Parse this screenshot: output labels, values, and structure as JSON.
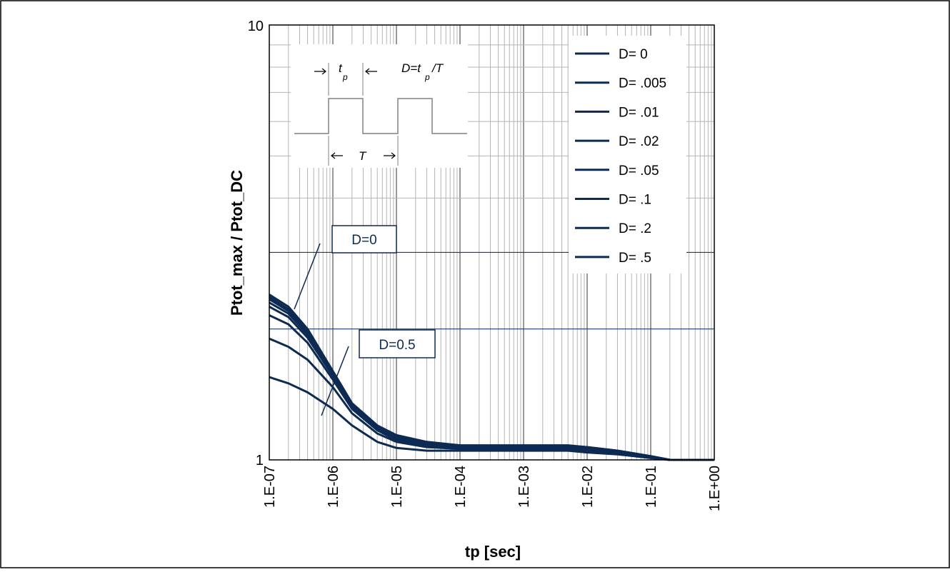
{
  "chart_data": {
    "type": "line",
    "xscale": "log",
    "yscale": "log",
    "xlim": [
      1e-07,
      1
    ],
    "ylim": [
      1,
      10
    ],
    "grid": true,
    "xlabel": "tp [sec]",
    "ylabel": "Ptot_max / Ptot_DC",
    "x_ticks": [
      "1.E-07",
      "1.E-06",
      "1.E-05",
      "1.E-04",
      "1.E-03",
      "1.E-02",
      "1.E-01",
      "1.E+00"
    ],
    "y_ticks": [
      "1",
      "10"
    ],
    "legend_position": "top-right",
    "colors": {
      "series": "#0d2a52",
      "grid_minor": "#b4b4b4",
      "grid_major": "#1b3a66"
    },
    "inset": {
      "tp_label": "t",
      "tp_sub": "p",
      "formula_prefix": "D=t",
      "formula_sub": "p",
      "formula_suffix": "/T",
      "period_label": "T"
    },
    "annotations": [
      {
        "label": "D=0"
      },
      {
        "label": "D=0.5"
      }
    ],
    "series": [
      {
        "name": "D= 0",
        "x": [
          1e-07,
          2e-07,
          4e-07,
          1e-06,
          2e-06,
          5e-06,
          1e-05,
          3e-05,
          0.0001,
          0.001,
          0.005,
          0.01,
          0.03,
          0.1,
          0.2,
          1
        ],
        "y": [
          2.4,
          2.25,
          2.0,
          1.6,
          1.35,
          1.2,
          1.14,
          1.1,
          1.08,
          1.08,
          1.08,
          1.07,
          1.05,
          1.02,
          1.0,
          1.0
        ]
      },
      {
        "name": "D= .005",
        "x": [
          1e-07,
          2e-07,
          4e-07,
          1e-06,
          2e-06,
          5e-06,
          1e-05,
          3e-05,
          0.0001,
          0.001,
          0.005,
          0.01,
          0.03,
          0.1,
          0.2,
          1
        ],
        "y": [
          2.37,
          2.22,
          1.98,
          1.59,
          1.34,
          1.19,
          1.135,
          1.095,
          1.075,
          1.075,
          1.075,
          1.07,
          1.05,
          1.02,
          1.0,
          1.0
        ]
      },
      {
        "name": "D= .01",
        "x": [
          1e-07,
          2e-07,
          4e-07,
          1e-06,
          2e-06,
          5e-06,
          1e-05,
          3e-05,
          0.0001,
          0.001,
          0.005,
          0.01,
          0.03,
          0.1,
          0.2,
          1
        ],
        "y": [
          2.34,
          2.2,
          1.96,
          1.58,
          1.33,
          1.19,
          1.13,
          1.09,
          1.07,
          1.07,
          1.07,
          1.065,
          1.045,
          1.02,
          1.0,
          1.0
        ]
      },
      {
        "name": "D= .02",
        "x": [
          1e-07,
          2e-07,
          4e-07,
          1e-06,
          2e-06,
          5e-06,
          1e-05,
          3e-05,
          0.0001,
          0.001,
          0.005,
          0.01,
          0.03,
          0.1,
          0.2,
          1
        ],
        "y": [
          2.3,
          2.17,
          1.94,
          1.57,
          1.33,
          1.18,
          1.13,
          1.09,
          1.07,
          1.07,
          1.07,
          1.06,
          1.04,
          1.02,
          1.0,
          1.0
        ]
      },
      {
        "name": "D= .05",
        "x": [
          1e-07,
          2e-07,
          4e-07,
          1e-06,
          2e-06,
          5e-06,
          1e-05,
          3e-05,
          0.0001,
          0.001,
          0.005,
          0.01,
          0.03,
          0.1,
          0.2,
          1
        ],
        "y": [
          2.25,
          2.13,
          1.91,
          1.56,
          1.32,
          1.17,
          1.12,
          1.085,
          1.07,
          1.07,
          1.068,
          1.06,
          1.04,
          1.015,
          1.0,
          1.0
        ]
      },
      {
        "name": "D= .1",
        "x": [
          1e-07,
          2e-07,
          4e-07,
          1e-06,
          2e-06,
          5e-06,
          1e-05,
          3e-05,
          0.0001,
          0.001,
          0.005,
          0.01,
          0.03,
          0.1,
          0.2,
          1
        ],
        "y": [
          2.15,
          2.05,
          1.86,
          1.53,
          1.31,
          1.17,
          1.11,
          1.08,
          1.065,
          1.065,
          1.065,
          1.055,
          1.04,
          1.015,
          1.0,
          1.0
        ]
      },
      {
        "name": "D= .2",
        "x": [
          1e-07,
          2e-07,
          4e-07,
          1e-06,
          2e-06,
          5e-06,
          1e-05,
          3e-05,
          0.0001,
          0.001,
          0.005,
          0.01,
          0.03,
          0.1,
          0.2,
          1
        ],
        "y": [
          1.9,
          1.82,
          1.7,
          1.47,
          1.28,
          1.15,
          1.1,
          1.07,
          1.06,
          1.06,
          1.06,
          1.05,
          1.035,
          1.015,
          1.0,
          1.0
        ]
      },
      {
        "name": "D= .5",
        "x": [
          1e-07,
          2e-07,
          4e-07,
          1e-06,
          2e-06,
          5e-06,
          1e-05,
          3e-05,
          0.0001,
          0.001,
          0.005,
          0.01,
          0.03,
          0.1,
          0.2,
          1
        ],
        "y": [
          1.55,
          1.5,
          1.43,
          1.31,
          1.2,
          1.1,
          1.065,
          1.05,
          1.05,
          1.05,
          1.05,
          1.04,
          1.03,
          1.01,
          1.0,
          1.0
        ]
      }
    ]
  }
}
